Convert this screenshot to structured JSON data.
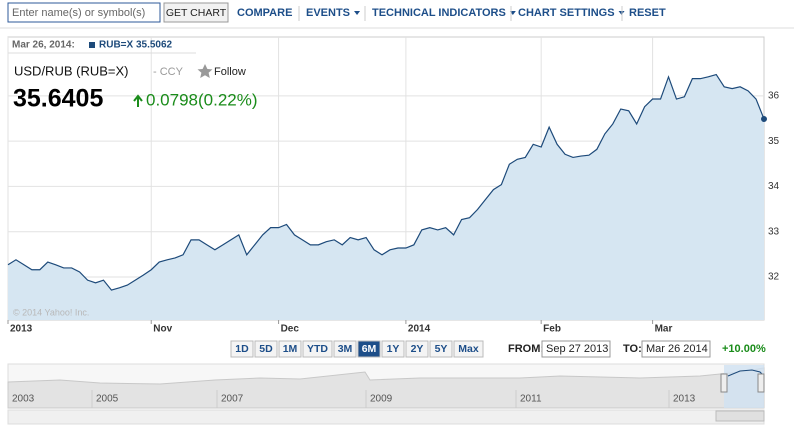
{
  "toolbar": {
    "search_placeholder": "Enter name(s) or symbol(s)",
    "get_chart": "GET CHART",
    "menu": [
      "COMPARE",
      "EVENTS",
      "TECHNICAL INDICATORS",
      "CHART SETTINGS",
      "RESET"
    ]
  },
  "header": {
    "date": "Mar 26, 2014:",
    "legend": "RUB=X 35.5062",
    "title": "USD/RUB (RUB=X)",
    "subtitle": "- CCY",
    "follow": "Follow",
    "price": "35.6405",
    "change": "0.0798(0.22%)"
  },
  "chart_data": {
    "type": "area",
    "color": "#1d4a7a",
    "fill": "#d6e6f2",
    "grid": true,
    "watermark": "© 2014 Yahoo! Inc.",
    "categories": [
      "2013",
      null,
      null,
      null,
      null,
      null,
      null,
      null,
      null,
      null,
      null,
      null,
      null,
      null,
      null,
      null,
      null,
      null,
      "Nov",
      null,
      null,
      null,
      null,
      null,
      null,
      null,
      null,
      null,
      null,
      null,
      null,
      null,
      null,
      null,
      "Dec",
      null,
      null,
      null,
      null,
      null,
      null,
      null,
      null,
      null,
      null,
      null,
      null,
      null,
      null,
      null,
      "2014",
      null,
      null,
      null,
      null,
      null,
      null,
      null,
      null,
      null,
      null,
      null,
      null,
      null,
      null,
      null,
      null,
      "Feb",
      null,
      null,
      null,
      null,
      null,
      null,
      null,
      null,
      null,
      null,
      null,
      null,
      null,
      "Mar",
      null,
      null,
      null,
      null,
      null,
      null,
      null,
      null,
      null,
      null,
      null,
      null,
      null,
      null
    ],
    "values": [
      32.27,
      32.38,
      32.27,
      32.16,
      32.16,
      32.33,
      32.27,
      32.2,
      32.2,
      32.11,
      31.93,
      31.87,
      31.93,
      31.71,
      31.76,
      31.82,
      31.93,
      32.04,
      32.16,
      32.33,
      32.38,
      32.42,
      32.49,
      32.82,
      32.82,
      32.71,
      32.6,
      32.71,
      32.82,
      32.93,
      32.49,
      32.71,
      32.93,
      33.09,
      33.09,
      33.16,
      32.93,
      32.82,
      32.71,
      32.71,
      32.78,
      32.82,
      32.71,
      32.87,
      32.82,
      32.87,
      32.6,
      32.49,
      32.6,
      32.64,
      32.64,
      32.71,
      33.04,
      33.09,
      33.04,
      33.09,
      32.93,
      33.27,
      33.31,
      33.49,
      33.71,
      33.93,
      34.04,
      34.49,
      34.6,
      34.64,
      34.93,
      34.87,
      35.31,
      34.93,
      34.71,
      34.64,
      34.67,
      34.69,
      34.82,
      35.16,
      35.38,
      35.71,
      35.67,
      35.38,
      35.76,
      35.93,
      35.93,
      36.42,
      35.93,
      35.98,
      36.38,
      36.38,
      36.42,
      36.47,
      36.2,
      36.16,
      36.2,
      36.11,
      35.93,
      35.49
    ],
    "ylim": [
      31.05,
      37.3
    ],
    "yticks": [
      32,
      33,
      34,
      35,
      36
    ]
  },
  "range": {
    "buttons": [
      "1D",
      "5D",
      "1M",
      "YTD",
      "3M",
      "6M",
      "1Y",
      "2Y",
      "5Y",
      "Max"
    ],
    "selected": 5,
    "from_label": "FROM:",
    "from": "Sep 27 2013",
    "to_label": "TO:",
    "to": "Mar 26 2014",
    "change": "+10.00%"
  },
  "navigator": {
    "years": [
      "2003",
      "2005",
      "2007",
      "2009",
      "2011",
      "2013"
    ]
  }
}
